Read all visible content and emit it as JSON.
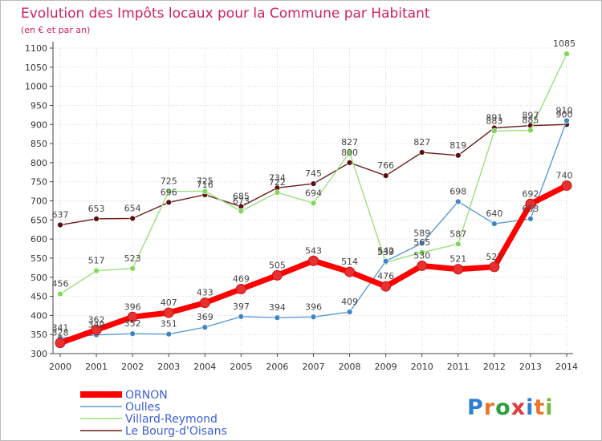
{
  "chart_data": {
    "type": "line",
    "title": "Evolution des Impôts locaux pour la Commune par Habitant",
    "subtitle": "(en € et par an)",
    "xlabel": "",
    "ylabel": "",
    "ylim": [
      300,
      1100
    ],
    "yticks": [
      300,
      350,
      400,
      450,
      500,
      550,
      600,
      650,
      700,
      750,
      800,
      850,
      900,
      950,
      1000,
      1050,
      1100
    ],
    "grid": true,
    "legend_position": "bottom-left",
    "x": [
      "2000",
      "2001",
      "2002",
      "2003",
      "2004",
      "2005",
      "2006",
      "2007",
      "2008",
      "2009",
      "2010",
      "2011",
      "2012",
      "2013",
      "2014"
    ],
    "series": [
      {
        "name": "Le Bourg-d'Oisans",
        "color": "#6b1a1a",
        "point_color": "#5a0f12",
        "values": [
          637,
          653,
          654,
          696,
          716,
          685,
          734,
          745,
          800,
          766,
          827,
          819,
          891,
          897,
          900
        ],
        "labels": [
          "637",
          "653",
          "654",
          "696",
          "716",
          "685",
          "734",
          "745",
          "800",
          "766",
          "827",
          "819",
          "891",
          "897",
          "900"
        ]
      },
      {
        "name": "Villard-Reymond",
        "color": "#99e07a",
        "point_color": "#7ed957",
        "values": [
          456,
          517,
          523,
          725,
          725,
          673,
          722,
          694,
          827,
          539,
          565,
          587,
          883,
          885,
          1085
        ],
        "labels": [
          "456",
          "517",
          "523",
          "725",
          "725",
          "673",
          "722",
          "694",
          "827",
          "539",
          "565",
          "587",
          "883",
          "885",
          "1085"
        ]
      },
      {
        "name": "Oulles",
        "color": "#5b9bd5",
        "point_color": "#3d85c6",
        "values": [
          341,
          349,
          352,
          351,
          369,
          397,
          394,
          396,
          409,
          542,
          589,
          698,
          640,
          653,
          910
        ],
        "labels": [
          "341",
          "349",
          "352",
          "351",
          "369",
          "397",
          "394",
          "396",
          "409",
          "542",
          "589",
          "698",
          "640",
          "653",
          "910"
        ]
      },
      {
        "name": "ORNON",
        "color": "#ff0000",
        "point_color": "#e83030",
        "values": [
          328,
          362,
          396,
          407,
          433,
          469,
          505,
          543,
          514,
          476,
          530,
          521,
          527,
          692,
          740
        ],
        "labels": [
          "328",
          "362",
          "396",
          "407",
          "433",
          "469",
          "505",
          "543",
          "514",
          "476",
          "530",
          "521",
          "527",
          "692",
          "740"
        ]
      }
    ],
    "legend": [
      "ORNON",
      "Oulles",
      "Villard-Reymond",
      "Le Bourg-d'Oisans"
    ]
  },
  "brand": {
    "logo_text": "Proxiti"
  }
}
